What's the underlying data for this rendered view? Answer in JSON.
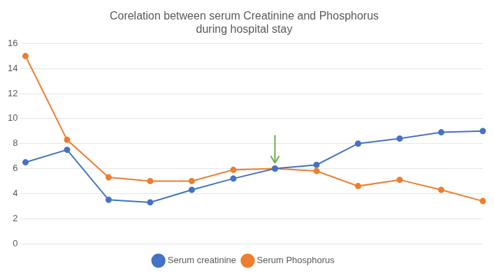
{
  "chart_data": {
    "type": "line",
    "title": "Corelation between serum Creatinine and Phosphorus\nduring hospital stay",
    "categories": [
      null,
      null,
      null,
      null,
      null,
      null,
      null,
      null,
      null,
      null,
      null,
      null
    ],
    "series": [
      {
        "name": "Serum creatinine",
        "color": "#4472C4",
        "marker": "circle",
        "values": [
          6.5,
          7.5,
          3.5,
          3.3,
          4.3,
          5.2,
          6.0,
          6.3,
          8.0,
          8.4,
          8.9,
          9.0
        ]
      },
      {
        "name": "Serum Phosphorus",
        "color": "#ED7D31",
        "marker": "circle",
        "values": [
          15.0,
          8.3,
          5.3,
          5.0,
          5.0,
          5.9,
          6.0,
          5.8,
          4.6,
          5.1,
          4.3,
          3.4
        ]
      }
    ],
    "annotations": [
      {
        "type": "arrow",
        "index": 6,
        "color": "#70AD47"
      }
    ],
    "ylim": [
      0,
      16
    ],
    "yticks": [
      0,
      2,
      4,
      6,
      8,
      10,
      12,
      14,
      16
    ],
    "grid": true,
    "legend": "bottom",
    "tick_labels": "y"
  }
}
